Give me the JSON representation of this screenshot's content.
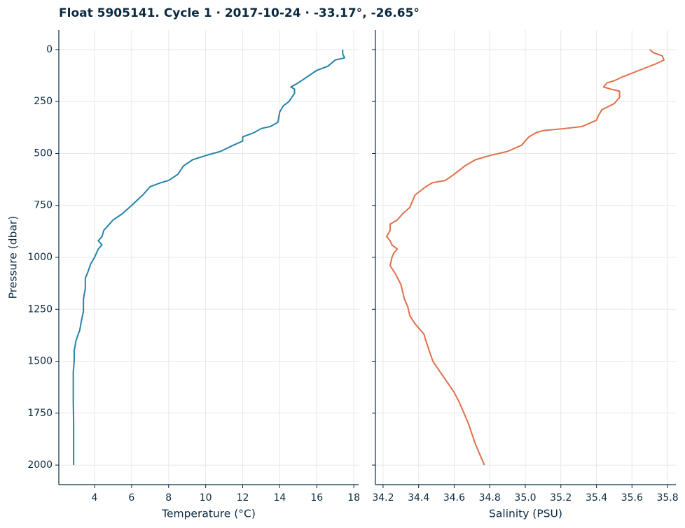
{
  "chart_data": [
    {
      "type": "line",
      "title": "Float 5905141. Cycle 1 · 2017-10-24 · -33.17°, -26.65°",
      "xlabel": "Temperature (°C)",
      "ylabel": "Pressure (dbar)",
      "color": "#2683a8",
      "grid": true,
      "xlim": [
        2.07,
        18.26
      ],
      "xticks": [
        4,
        6,
        8,
        10,
        12,
        14,
        16,
        18
      ],
      "ylim": [
        2094,
        -94
      ],
      "yticks": [
        0,
        250,
        500,
        750,
        1000,
        1250,
        1500,
        1750,
        2000
      ],
      "y": [
        0,
        20,
        40,
        50,
        80,
        100,
        130,
        160,
        180,
        190,
        210,
        250,
        270,
        300,
        350,
        370,
        380,
        400,
        420,
        440,
        460,
        490,
        510,
        530,
        560,
        600,
        630,
        640,
        660,
        700,
        750,
        790,
        820,
        850,
        870,
        900,
        920,
        940,
        960,
        980,
        1000,
        1030,
        1080,
        1100,
        1150,
        1200,
        1260,
        1300,
        1350,
        1400,
        1450,
        1500,
        1550,
        1700,
        1800,
        2000
      ],
      "x": [
        17.4,
        17.4,
        17.5,
        17.0,
        16.6,
        16.0,
        15.5,
        15.0,
        14.6,
        14.8,
        14.8,
        14.5,
        14.2,
        14.0,
        13.9,
        13.5,
        13.0,
        12.6,
        12.0,
        12.0,
        11.5,
        10.8,
        10.0,
        9.3,
        8.8,
        8.5,
        8.0,
        7.6,
        7.0,
        6.6,
        6.0,
        5.5,
        5.0,
        4.7,
        4.5,
        4.4,
        4.2,
        4.4,
        4.2,
        4.1,
        4.0,
        3.8,
        3.6,
        3.5,
        3.5,
        3.4,
        3.4,
        3.3,
        3.2,
        3.0,
        2.9,
        2.9,
        2.85,
        2.85,
        2.87,
        2.87
      ]
    },
    {
      "type": "line",
      "xlabel": "Salinity (PSU)",
      "color": "#e0704a",
      "grid": true,
      "sharey": true,
      "xlim": [
        34.157,
        35.847
      ],
      "xticks": [
        34.2,
        34.4,
        34.6,
        34.8,
        {
          "value": 35,
          "label": "35.0"
        },
        35.2,
        35.4,
        35.6,
        35.8
      ],
      "y": [
        0,
        15,
        30,
        50,
        70,
        100,
        130,
        150,
        160,
        180,
        190,
        200,
        230,
        260,
        290,
        320,
        340,
        370,
        380,
        390,
        400,
        420,
        460,
        490,
        510,
        530,
        560,
        600,
        630,
        640,
        660,
        700,
        760,
        790,
        820,
        840,
        870,
        900,
        920,
        940,
        960,
        980,
        1000,
        1040,
        1080,
        1130,
        1200,
        1240,
        1280,
        1320,
        1370,
        1400,
        1450,
        1500,
        1550,
        1600,
        1650,
        1700,
        1800,
        1900,
        2000
      ],
      "x": [
        35.7,
        35.72,
        35.77,
        35.78,
        35.73,
        35.64,
        35.55,
        35.5,
        35.46,
        35.44,
        35.48,
        35.53,
        35.53,
        35.5,
        35.43,
        35.41,
        35.4,
        35.32,
        35.22,
        35.1,
        35.06,
        35.02,
        34.98,
        34.9,
        34.8,
        34.72,
        34.66,
        34.6,
        34.55,
        34.48,
        34.44,
        34.38,
        34.35,
        34.31,
        34.28,
        34.24,
        34.24,
        34.22,
        34.24,
        34.25,
        34.28,
        34.26,
        34.25,
        34.24,
        34.27,
        34.3,
        34.32,
        34.34,
        34.35,
        34.38,
        34.43,
        34.44,
        34.46,
        34.48,
        34.52,
        34.56,
        34.6,
        34.63,
        34.68,
        34.72,
        34.77
      ]
    }
  ]
}
